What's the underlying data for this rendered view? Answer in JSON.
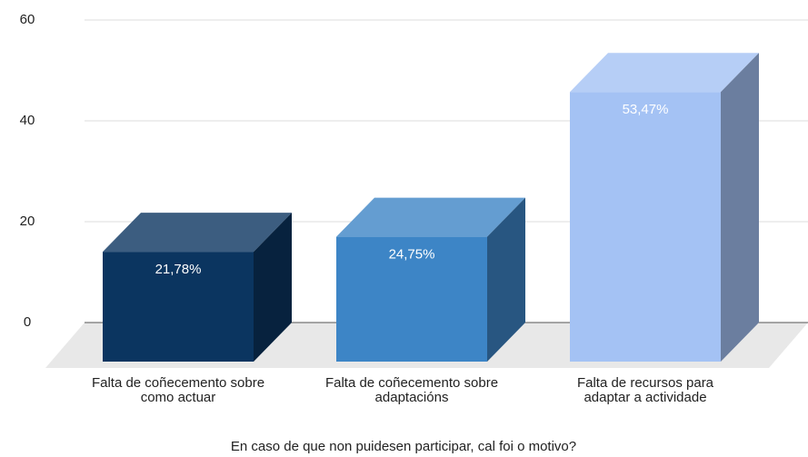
{
  "chart_data": {
    "type": "bar3d",
    "x_label": "En caso de que non puidesen participar, cal foi o motivo?",
    "categories": [
      "Falta de coñecemento sobre\ncomo actuar",
      "Falta de coñecemento sobre\nadaptacións",
      "Falta de recursos para\nadaptar a actividade"
    ],
    "values": [
      21.78,
      24.75,
      53.47
    ],
    "value_labels": [
      "21,78%",
      "24,75%",
      "53,47%"
    ],
    "colors": [
      "#0b3560",
      "#3d85c6",
      "#a4c2f4"
    ],
    "ylim": [
      0,
      60
    ],
    "yticks": [
      0,
      20,
      40,
      60
    ],
    "grid": true
  }
}
